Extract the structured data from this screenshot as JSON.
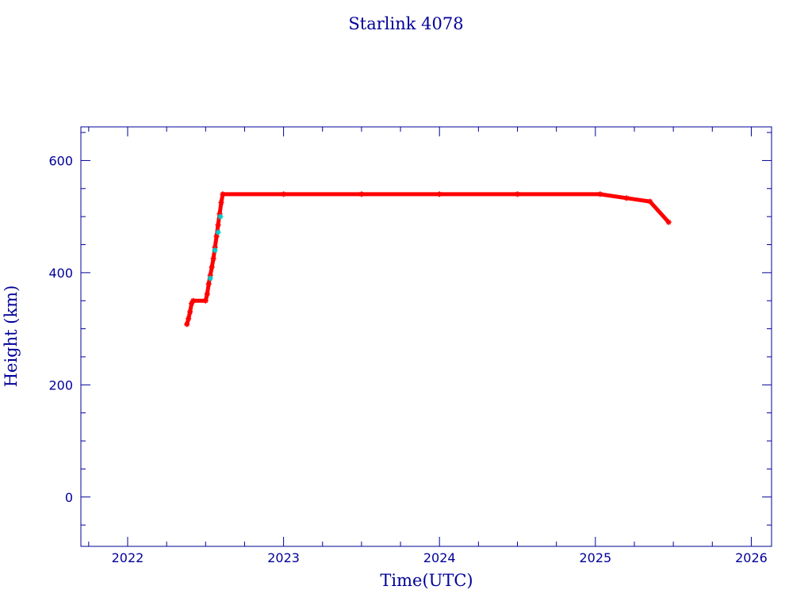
{
  "chart_data": {
    "type": "scatter",
    "title": "Starlink 4078",
    "xlabel": "Time(UTC)",
    "ylabel": "Height (km)",
    "xlim": [
      2021.7,
      2026.13
    ],
    "ylim": [
      -88,
      660
    ],
    "x_ticks": [
      2022,
      2023,
      2024,
      2025,
      2026
    ],
    "x_tick_labels": [
      "2022",
      "2023",
      "2024",
      "2025",
      "2026"
    ],
    "y_ticks": [
      0,
      200,
      400,
      600
    ],
    "y_tick_labels": [
      "0",
      "200",
      "400",
      "600"
    ],
    "x_minor_step": 0.25,
    "y_minor_step": 50,
    "grid": false,
    "colors": {
      "axis": "#000099",
      "series": "#ff0000",
      "highlight": "#00cccc"
    },
    "series": [
      {
        "marker": "asterisk",
        "color": "#ff0000",
        "points": [
          [
            2022.38,
            308
          ],
          [
            2022.39,
            318
          ],
          [
            2022.4,
            330
          ],
          [
            2022.41,
            345
          ],
          [
            2022.42,
            350
          ],
          [
            2022.5,
            350
          ],
          [
            2022.51,
            362
          ],
          [
            2022.52,
            380
          ],
          [
            2022.53,
            395
          ],
          [
            2022.54,
            410
          ],
          [
            2022.55,
            425
          ],
          [
            2022.56,
            445
          ],
          [
            2022.57,
            465
          ],
          [
            2022.58,
            485
          ],
          [
            2022.59,
            505
          ],
          [
            2022.6,
            525
          ],
          [
            2022.61,
            540
          ],
          [
            2023.0,
            540
          ],
          [
            2023.5,
            540
          ],
          [
            2024.0,
            540
          ],
          [
            2024.5,
            540
          ],
          [
            2025.03,
            540
          ],
          [
            2025.2,
            533
          ],
          [
            2025.35,
            527
          ],
          [
            2025.47,
            490
          ]
        ]
      }
    ],
    "highlight_points": [
      [
        2022.53,
        390
      ],
      [
        2022.56,
        440
      ],
      [
        2022.58,
        472
      ],
      [
        2022.595,
        500
      ]
    ]
  }
}
